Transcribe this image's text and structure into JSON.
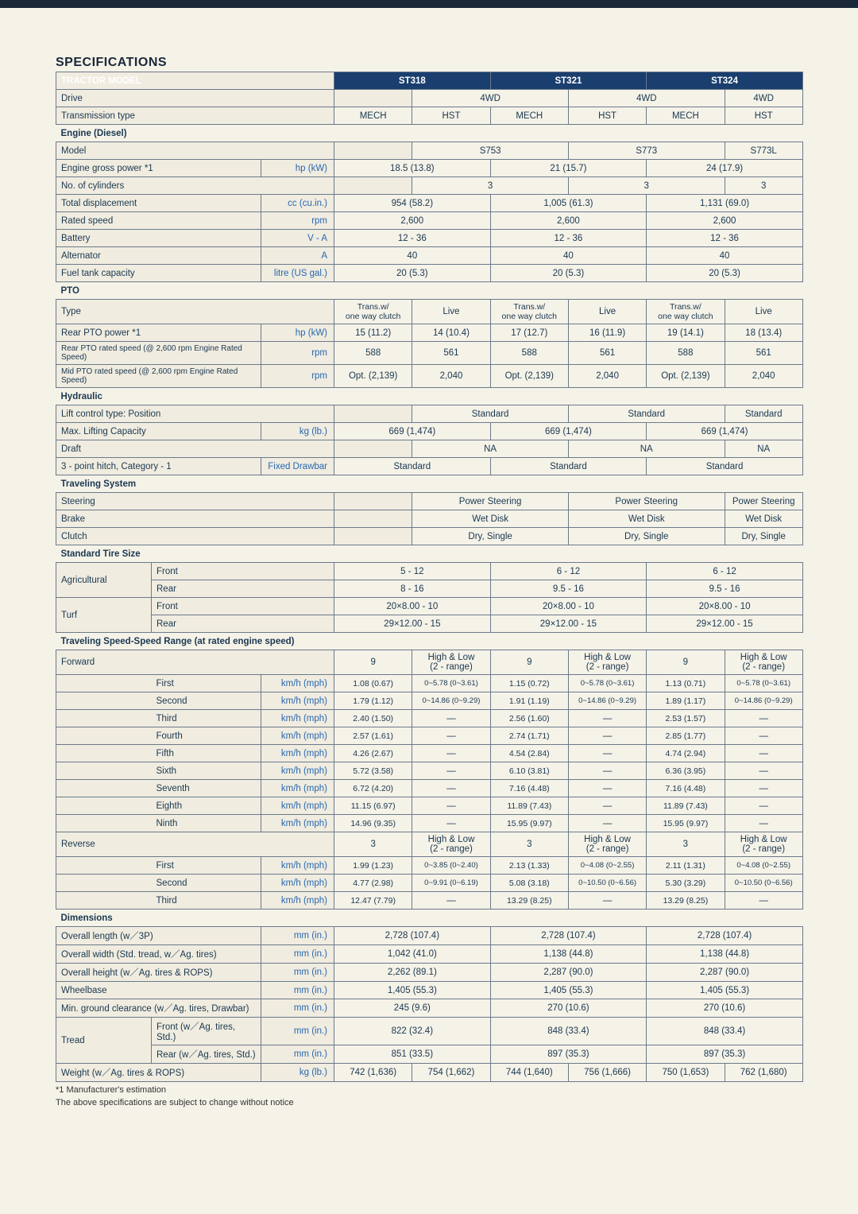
{
  "title": "SPECIFICATIONS",
  "models": [
    "ST318",
    "ST321",
    "ST324"
  ],
  "header": {
    "tractor_model": "TRACTOR MODEL"
  },
  "rows": {
    "drive": {
      "label": "Drive",
      "v": [
        "4WD",
        "4WD",
        "4WD"
      ]
    },
    "trans_type": {
      "label": "Transmission type",
      "sub": [
        "MECH",
        "HST",
        "MECH",
        "HST",
        "MECH",
        "HST"
      ]
    }
  },
  "engine": {
    "section": "Engine (Diesel)",
    "model": {
      "label": "Model",
      "v": [
        "S753",
        "S773",
        "S773L"
      ]
    },
    "power": {
      "label": "Engine gross power *1",
      "unit": "hp (kW)",
      "v": [
        "18.5 (13.8)",
        "21 (15.7)",
        "24 (17.9)"
      ]
    },
    "cyl": {
      "label": "No. of cylinders",
      "v": [
        "3",
        "3",
        "3"
      ]
    },
    "disp": {
      "label": "Total displacement",
      "unit": "cc (cu.in.)",
      "v": [
        "954 (58.2)",
        "1,005 (61.3)",
        "1,131 (69.0)"
      ]
    },
    "rated": {
      "label": "Rated speed",
      "unit": "rpm",
      "v": [
        "2,600",
        "2,600",
        "2,600"
      ]
    },
    "batt": {
      "label": "Battery",
      "unit": "V - A",
      "v": [
        "12 - 36",
        "12 - 36",
        "12 - 36"
      ]
    },
    "alt": {
      "label": "Alternator",
      "unit": "A",
      "v": [
        "40",
        "40",
        "40"
      ]
    },
    "fuel": {
      "label": "Fuel tank capacity",
      "unit": "litre (US gal.)",
      "v": [
        "20 (5.3)",
        "20 (5.3)",
        "20 (5.3)"
      ]
    }
  },
  "pto": {
    "section": "PTO",
    "type": {
      "label": "Type",
      "sub": [
        "Trans.w/\none way clutch",
        "Live",
        "Trans.w/\none way clutch",
        "Live",
        "Trans.w/\none way clutch",
        "Live"
      ]
    },
    "rearpwr": {
      "label": "Rear PTO power *1",
      "unit": "hp (kW)",
      "v": [
        "15 (11.2)",
        "14 (10.4)",
        "17 (12.7)",
        "16 (11.9)",
        "19 (14.1)",
        "18 (13.4)"
      ]
    },
    "rearspd": {
      "label": "Rear PTO rated speed (@ 2,600 rpm Engine Rated Speed)",
      "unit": "rpm",
      "v": [
        "588",
        "561",
        "588",
        "561",
        "588",
        "561"
      ]
    },
    "midspd": {
      "label": "Mid PTO rated speed (@ 2,600 rpm Engine Rated Speed)",
      "unit": "rpm",
      "v": [
        "Opt. (2,139)",
        "2,040",
        "Opt. (2,139)",
        "2,040",
        "Opt. (2,139)",
        "2,040"
      ]
    }
  },
  "hyd": {
    "section": "Hydraulic",
    "lift": {
      "label": "Lift control type: Position",
      "v": [
        "Standard",
        "Standard",
        "Standard"
      ]
    },
    "cap": {
      "label": "Max. Lifting Capacity",
      "unit": "kg (lb.)",
      "v": [
        "669 (1,474)",
        "669 (1,474)",
        "669 (1,474)"
      ]
    },
    "draft": {
      "label": "Draft",
      "v": [
        "NA",
        "NA",
        "NA"
      ]
    },
    "hitch": {
      "label": "3 - point hitch, Category - 1",
      "unit": "Fixed Drawbar",
      "v": [
        "Standard",
        "Standard",
        "Standard"
      ]
    }
  },
  "trav": {
    "section": "Traveling System",
    "steer": {
      "label": "Steering",
      "v": [
        "Power Steering",
        "Power Steering",
        "Power Steering"
      ]
    },
    "brake": {
      "label": "Brake",
      "v": [
        "Wet Disk",
        "Wet Disk",
        "Wet Disk"
      ]
    },
    "clutch": {
      "label": "Clutch",
      "v": [
        "Dry, Single",
        "Dry, Single",
        "Dry, Single"
      ]
    }
  },
  "tire": {
    "section": "Standard Tire Size",
    "ag": {
      "label": "Agricultural",
      "front": "Front",
      "rear": "Rear",
      "fv": [
        "5 - 12",
        "6 - 12",
        "6 - 12"
      ],
      "rv": [
        "8 - 16",
        "9.5 - 16",
        "9.5 - 16"
      ]
    },
    "turf": {
      "label": "Turf",
      "front": "Front",
      "rear": "Rear",
      "fv": [
        "20×8.00 - 10",
        "20×8.00 - 10",
        "20×8.00 - 10"
      ],
      "rv": [
        "29×12.00 - 15",
        "29×12.00 - 15",
        "29×12.00 - 15"
      ]
    }
  },
  "speed": {
    "section": "Traveling Speed-Speed Range (at rated engine speed)",
    "fwd": {
      "label": "Forward",
      "v": [
        "9",
        "High & Low\n(2 - range)",
        "9",
        "High & Low\n(2 - range)",
        "9",
        "High & Low\n(2 - range)"
      ]
    },
    "gears": [
      {
        "n": "First",
        "u": "km/h (mph)",
        "v": [
          "1.08 (0.67)",
          "0~5.78 (0~3.61)",
          "1.15 (0.72)",
          "0~5.78 (0~3.61)",
          "1.13 (0.71)",
          "0~5.78 (0~3.61)"
        ]
      },
      {
        "n": "Second",
        "u": "km/h (mph)",
        "v": [
          "1.79 (1.12)",
          "0~14.86 (0~9.29)",
          "1.91 (1.19)",
          "0~14.86 (0~9.29)",
          "1.89 (1.17)",
          "0~14.86 (0~9.29)"
        ]
      },
      {
        "n": "Third",
        "u": "km/h (mph)",
        "v": [
          "2.40 (1.50)",
          "—",
          "2.56 (1.60)",
          "—",
          "2.53 (1.57)",
          "—"
        ]
      },
      {
        "n": "Fourth",
        "u": "km/h (mph)",
        "v": [
          "2.57 (1.61)",
          "—",
          "2.74 (1.71)",
          "—",
          "2.85 (1.77)",
          "—"
        ]
      },
      {
        "n": "Fifth",
        "u": "km/h (mph)",
        "v": [
          "4.26 (2.67)",
          "—",
          "4.54 (2.84)",
          "—",
          "4.74 (2.94)",
          "—"
        ]
      },
      {
        "n": "Sixth",
        "u": "km/h (mph)",
        "v": [
          "5.72 (3.58)",
          "—",
          "6.10 (3.81)",
          "—",
          "6.36 (3.95)",
          "—"
        ]
      },
      {
        "n": "Seventh",
        "u": "km/h (mph)",
        "v": [
          "6.72 (4.20)",
          "—",
          "7.16 (4.48)",
          "—",
          "7.16 (4.48)",
          "—"
        ]
      },
      {
        "n": "Eighth",
        "u": "km/h (mph)",
        "v": [
          "11.15 (6.97)",
          "—",
          "11.89 (7.43)",
          "—",
          "11.89 (7.43)",
          "—"
        ]
      },
      {
        "n": "Ninth",
        "u": "km/h (mph)",
        "v": [
          "14.96 (9.35)",
          "—",
          "15.95 (9.97)",
          "—",
          "15.95 (9.97)",
          "—"
        ]
      }
    ],
    "rev": {
      "label": "Reverse",
      "v": [
        "3",
        "High & Low\n(2 - range)",
        "3",
        "High & Low\n(2 - range)",
        "3",
        "High & Low\n(2 - range)"
      ]
    },
    "rgears": [
      {
        "n": "First",
        "u": "km/h (mph)",
        "v": [
          "1.99 (1.23)",
          "0~3.85 (0~2.40)",
          "2.13 (1.33)",
          "0~4.08 (0~2.55)",
          "2.11 (1.31)",
          "0~4.08 (0~2.55)"
        ]
      },
      {
        "n": "Second",
        "u": "km/h (mph)",
        "v": [
          "4.77 (2.98)",
          "0~9.91 (0~6.19)",
          "5.08 (3.18)",
          "0~10.50 (0~6.56)",
          "5.30 (3.29)",
          "0~10.50 (0~6.56)"
        ]
      },
      {
        "n": "Third",
        "u": "km/h (mph)",
        "v": [
          "12.47 (7.79)",
          "—",
          "13.29 (8.25)",
          "—",
          "13.29 (8.25)",
          "—"
        ]
      }
    ]
  },
  "dim": {
    "section": "Dimensions",
    "len": {
      "label": "Overall length (w／3P)",
      "unit": "mm (in.)",
      "v": [
        "2,728 (107.4)",
        "2,728 (107.4)",
        "2,728 (107.4)"
      ]
    },
    "wid": {
      "label": "Overall width (Std. tread, w／Ag. tires)",
      "unit": "mm (in.)",
      "v": [
        "1,042 (41.0)",
        "1,138 (44.8)",
        "1,138 (44.8)"
      ]
    },
    "hgt": {
      "label": "Overall height (w／Ag. tires & ROPS)",
      "unit": "mm (in.)",
      "v": [
        "2,262 (89.1)",
        "2,287 (90.0)",
        "2,287 (90.0)"
      ]
    },
    "wb": {
      "label": "Wheelbase",
      "unit": "mm (in.)",
      "v": [
        "1,405 (55.3)",
        "1,405 (55.3)",
        "1,405 (55.3)"
      ]
    },
    "gc": {
      "label": "Min. ground clearance (w／Ag. tires, Drawbar)",
      "unit": "mm (in.)",
      "v": [
        "245 (9.6)",
        "270 (10.6)",
        "270 (10.6)"
      ]
    },
    "tread": {
      "label": "Tread",
      "front": "Front (w／Ag. tires, Std.)",
      "rear": "Rear  (w／Ag. tires, Std.)",
      "unit": "mm (in.)",
      "fv": [
        "822 (32.4)",
        "848 (33.4)",
        "848 (33.4)"
      ],
      "rv": [
        "851 (33.5)",
        "897 (35.3)",
        "897 (35.3)"
      ]
    },
    "wgt": {
      "label": "Weight  (w／Ag. tires & ROPS)",
      "unit": "kg (lb.)",
      "v": [
        "742 (1,636)",
        "754 (1,662)",
        "744 (1,640)",
        "756 (1,666)",
        "750 (1,653)",
        "762 (1,680)"
      ]
    }
  },
  "foot": {
    "l1": "*1 Manufacturer's estimation",
    "l2": "The above specifications are subject to change without notice"
  }
}
